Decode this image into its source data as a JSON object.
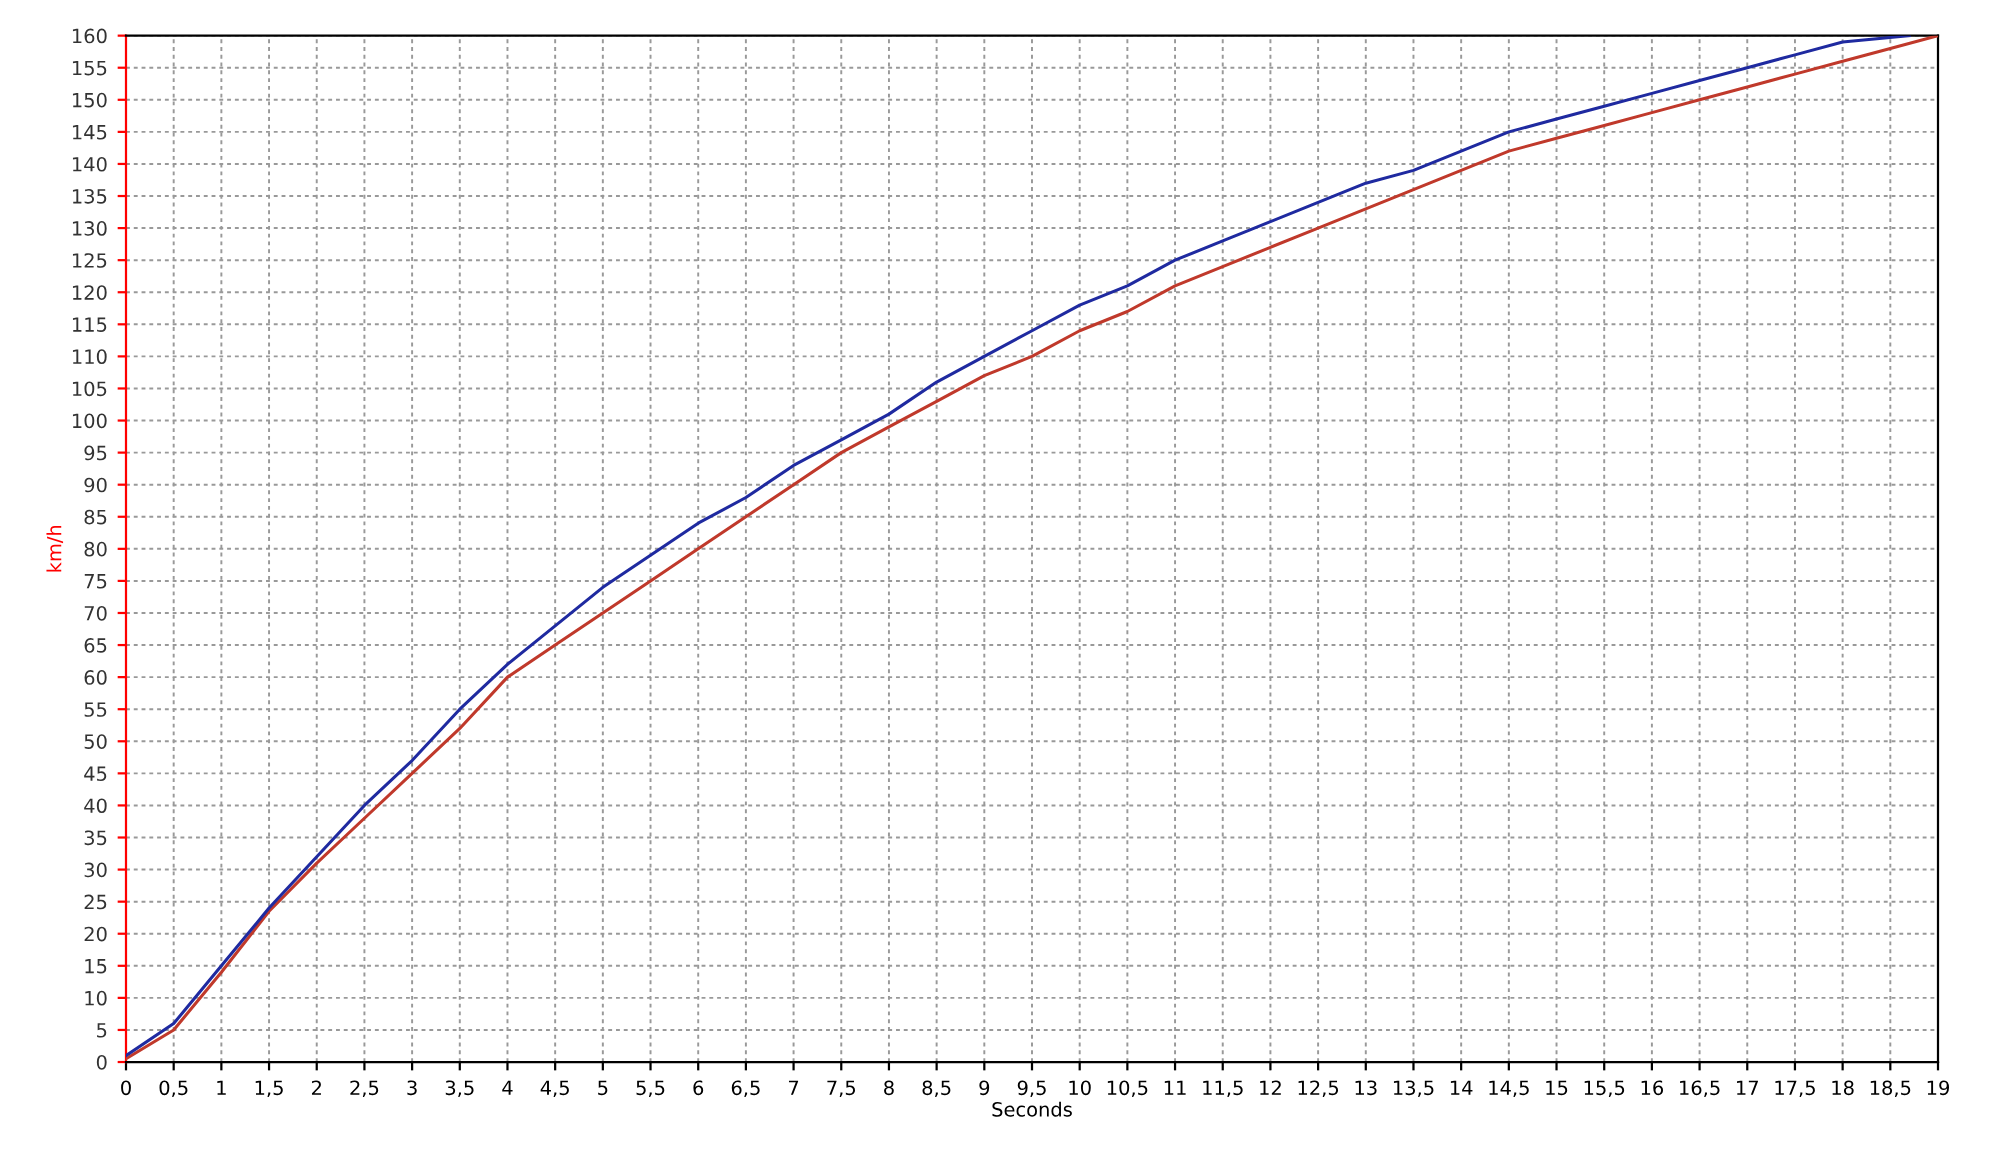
{
  "chart_data": {
    "type": "line",
    "xlabel": "Seconds",
    "ylabel": "km/h",
    "xlim": [
      0,
      19
    ],
    "ylim": [
      0,
      160
    ],
    "xticks": [
      0,
      {
        "value": 0.5,
        "label": "0,5"
      },
      1,
      {
        "value": 1.5,
        "label": "1,5"
      },
      2,
      {
        "value": 2.5,
        "label": "2,5"
      },
      3,
      {
        "value": 3.5,
        "label": "3,5"
      },
      4,
      {
        "value": 4.5,
        "label": "4,5"
      },
      5,
      {
        "value": 5.5,
        "label": "5,5"
      },
      6,
      {
        "value": 6.5,
        "label": "6,5"
      },
      7,
      {
        "value": 7.5,
        "label": "7,5"
      },
      8,
      {
        "value": 8.5,
        "label": "8,5"
      },
      9,
      {
        "value": 9.5,
        "label": "9,5"
      },
      10,
      {
        "value": 10.5,
        "label": "10,5"
      },
      11,
      {
        "value": 11.5,
        "label": "11,5"
      },
      12,
      {
        "value": 12.5,
        "label": "12,5"
      },
      13,
      {
        "value": 13.5,
        "label": "13,5"
      },
      14,
      {
        "value": 14.5,
        "label": "14,5"
      },
      15,
      {
        "value": 15.5,
        "label": "15,5"
      },
      16,
      {
        "value": 16.5,
        "label": "16,5"
      },
      17,
      {
        "value": 17.5,
        "label": "17,5"
      },
      18,
      {
        "value": 18.5,
        "label": "18,5"
      },
      19
    ],
    "yticks": [
      0,
      5,
      10,
      15,
      20,
      25,
      30,
      35,
      40,
      45,
      50,
      55,
      60,
      65,
      70,
      75,
      80,
      85,
      90,
      95,
      100,
      105,
      110,
      115,
      120,
      125,
      130,
      135,
      140,
      145,
      150,
      155,
      160
    ],
    "grid": true,
    "line_style": "solid",
    "marker": "none",
    "series": [
      {
        "color": "#1f2aa0",
        "x": [
          0,
          0.5,
          1,
          1.5,
          2,
          2.5,
          3,
          3.5,
          4,
          4.5,
          5,
          5.5,
          6,
          6.5,
          7,
          7.5,
          8,
          8.5,
          9,
          9.5,
          10,
          10.5,
          11,
          11.5,
          12,
          12.5,
          13,
          13.5,
          14,
          14.5,
          15,
          15.5,
          16,
          16.5,
          17,
          17.5,
          18,
          18.7
        ],
        "values": [
          1,
          6,
          15,
          24,
          32,
          40,
          47,
          55,
          62,
          68,
          74,
          79,
          84,
          88,
          93,
          97,
          101,
          106,
          110,
          114,
          118,
          121,
          125,
          128,
          131,
          134,
          137,
          139,
          142,
          145,
          147,
          149,
          151,
          153,
          155,
          157,
          159,
          160
        ]
      },
      {
        "color": "#c0392b",
        "x": [
          0,
          0.5,
          1,
          1.5,
          2,
          2.5,
          3,
          3.5,
          4,
          4.5,
          5,
          5.5,
          6,
          6.5,
          7,
          7.5,
          8,
          8.5,
          9,
          9.5,
          10,
          10.5,
          11,
          11.5,
          12,
          12.5,
          13,
          13.5,
          14,
          14.5,
          15,
          15.5,
          16,
          16.5,
          17,
          17.5,
          18,
          18.5,
          19
        ],
        "values": [
          0.5,
          5,
          14,
          23.5,
          31,
          38,
          45,
          52,
          60,
          65,
          70,
          75,
          80,
          85,
          90,
          95,
          99,
          103,
          107,
          110,
          114,
          117,
          121,
          124,
          127,
          130,
          133,
          136,
          139,
          142,
          144,
          146,
          148,
          150,
          152,
          154,
          156,
          158,
          160
        ]
      }
    ]
  }
}
